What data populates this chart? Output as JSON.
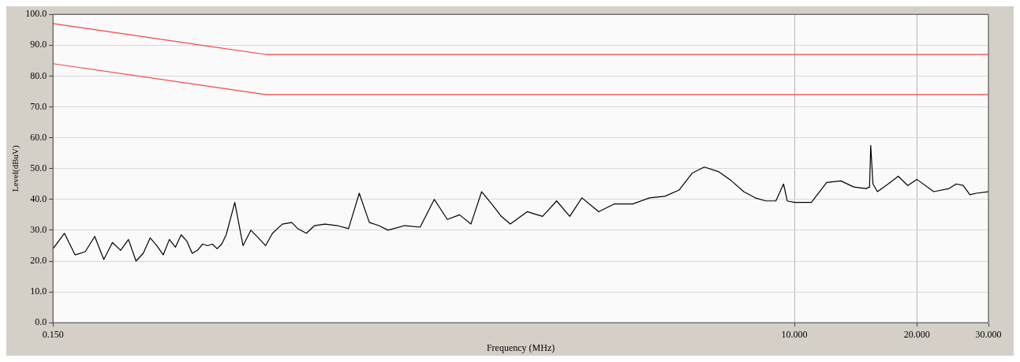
{
  "chart_data": {
    "type": "line",
    "xlabel": "Frequency (MHz)",
    "ylabel": "Level(dBuV)",
    "log": "x",
    "grid": true,
    "legend": false,
    "marker": "none",
    "line_style": "solid",
    "xlim": [
      0.15,
      30
    ],
    "xticks": [
      {
        "value": 0.15,
        "label": "0.150"
      },
      {
        "value": 10,
        "label": "10.000"
      },
      {
        "value": 20,
        "label": "20.000"
      },
      {
        "value": 30,
        "label": "30.000"
      }
    ],
    "ylim": [
      0,
      100
    ],
    "yticks": [
      {
        "value": 0,
        "label": "0.0"
      },
      {
        "value": 10,
        "label": "10.0"
      },
      {
        "value": 20,
        "label": "20.0"
      },
      {
        "value": 30,
        "label": "30.0"
      },
      {
        "value": 40,
        "label": "40.0"
      },
      {
        "value": 50,
        "label": "50.0"
      },
      {
        "value": 60,
        "label": "60.0"
      },
      {
        "value": 70,
        "label": "70.0"
      },
      {
        "value": 80,
        "label": "80.0"
      },
      {
        "value": 90,
        "label": "90.0"
      },
      {
        "value": 100,
        "label": "100.0"
      }
    ],
    "series": [
      {
        "color": "#ff4040",
        "x": [
          0.15,
          0.5,
          30
        ],
        "values": [
          97,
          87,
          87
        ]
      },
      {
        "color": "#ff4040",
        "x": [
          0.15,
          0.5,
          30
        ],
        "values": [
          84,
          74,
          74
        ]
      },
      {
        "color": "#000000",
        "x": [
          0.15,
          0.16,
          0.17,
          0.18,
          0.19,
          0.2,
          0.21,
          0.22,
          0.23,
          0.24,
          0.25,
          0.26,
          0.27,
          0.28,
          0.29,
          0.3,
          0.31,
          0.32,
          0.33,
          0.34,
          0.35,
          0.36,
          0.37,
          0.38,
          0.39,
          0.4,
          0.42,
          0.44,
          0.46,
          0.48,
          0.5,
          0.52,
          0.55,
          0.58,
          0.6,
          0.63,
          0.66,
          0.7,
          0.75,
          0.8,
          0.85,
          0.9,
          0.95,
          1.0,
          1.1,
          1.2,
          1.3,
          1.4,
          1.5,
          1.6,
          1.7,
          1.8,
          1.9,
          2.0,
          2.2,
          2.4,
          2.6,
          2.8,
          3.0,
          3.3,
          3.6,
          4.0,
          4.4,
          4.8,
          5.2,
          5.6,
          6.0,
          6.5,
          7.0,
          7.5,
          8.0,
          8.5,
          9.0,
          9.4,
          9.6,
          10,
          11,
          12,
          13,
          14,
          15,
          15.3,
          15.4,
          15.6,
          16,
          17,
          18,
          19,
          20,
          22,
          24,
          25,
          26,
          27,
          28,
          30
        ],
        "values": [
          24,
          29,
          22,
          23,
          28,
          20.5,
          26,
          23.5,
          27,
          20,
          22.5,
          27.5,
          25,
          22,
          27,
          24.5,
          28.5,
          26.5,
          22.5,
          23.5,
          25.5,
          25,
          25.5,
          24,
          25.5,
          28.5,
          39,
          25,
          30,
          27.5,
          25,
          29,
          32,
          32.5,
          30.5,
          29,
          31.5,
          32,
          31.5,
          30.5,
          42,
          32.5,
          31.5,
          30,
          31.5,
          31,
          40,
          33.5,
          35,
          32,
          42.5,
          38.5,
          34.5,
          32,
          36,
          34.5,
          39.5,
          34.5,
          40.5,
          36,
          38.5,
          38.5,
          40.5,
          41,
          43,
          48.5,
          50.5,
          49,
          46,
          42.5,
          40.5,
          39.5,
          39.5,
          45,
          39.5,
          39,
          39,
          45.5,
          46,
          44,
          43.5,
          44,
          57.5,
          45,
          42.5,
          45,
          47.5,
          44.5,
          46.5,
          42.5,
          43.5,
          45,
          44.5,
          41.5,
          42,
          42.5
        ]
      }
    ]
  }
}
